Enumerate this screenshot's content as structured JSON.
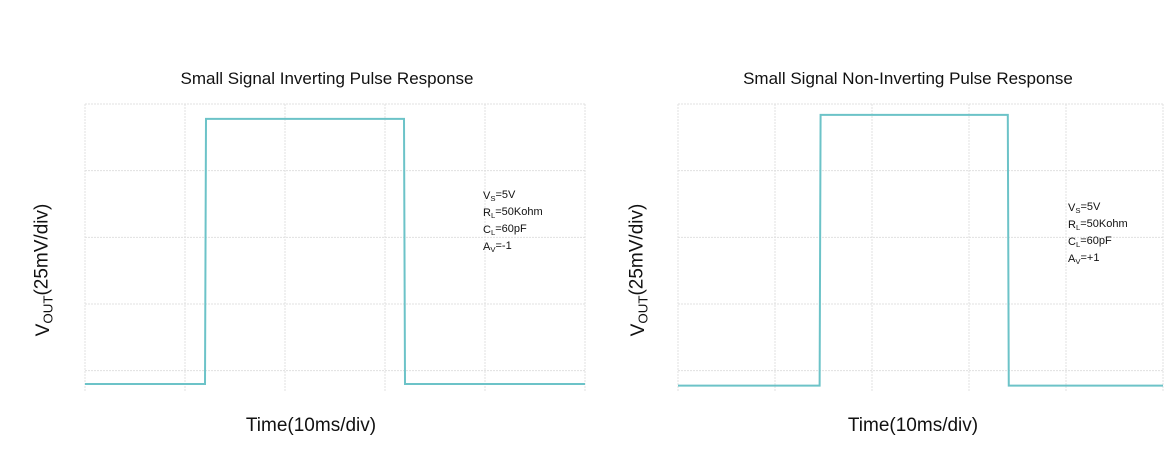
{
  "chart_data": [
    {
      "type": "line",
      "title": "Small Signal Inverting Pulse Response",
      "ylabel": [
        "V",
        "OUT",
        "(25mV/div)"
      ],
      "xlabel": "Time(10ms/div)",
      "annotations": [
        [
          "V",
          "S",
          "=5V"
        ],
        [
          "R",
          "L",
          "=50Kohm"
        ],
        [
          "C",
          "L",
          "=60pF"
        ],
        [
          "A",
          "V",
          "=-1"
        ]
      ],
      "x": [
        0,
        12,
        12.1,
        31.9,
        32,
        50
      ],
      "values": [
        -5,
        -5,
        94.4,
        94.4,
        -5,
        -5
      ],
      "color": "#6cc3c8",
      "xlim": [
        0,
        50
      ],
      "xticks": [
        0,
        10,
        20,
        30,
        40,
        50
      ],
      "ylim": [
        -8,
        100
      ],
      "yticks": [
        0,
        25,
        50,
        75,
        100
      ],
      "grid": true
    },
    {
      "type": "line",
      "title": "Small Signal Non-Inverting Pulse Response",
      "ylabel": [
        "V",
        "OUT",
        "(25mV/div)"
      ],
      "xlabel": "Time(10ms/div)",
      "annotations": [
        [
          "V",
          "S",
          "=5V"
        ],
        [
          "R",
          "L",
          "=50Kohm"
        ],
        [
          "C",
          "L",
          "=60pF"
        ],
        [
          "A",
          "V",
          "=+1"
        ]
      ],
      "x": [
        0,
        14.6,
        14.7,
        34,
        34.1,
        50
      ],
      "values": [
        -5.6,
        -5.6,
        95.9,
        95.9,
        -5.6,
        -5.6
      ],
      "color": "#6cc3c8",
      "xlim": [
        0,
        50
      ],
      "xticks": [
        0,
        10,
        20,
        30,
        40,
        50
      ],
      "ylim": [
        -8,
        100
      ],
      "yticks": [
        0,
        25,
        50,
        75,
        100
      ],
      "grid": true
    }
  ]
}
